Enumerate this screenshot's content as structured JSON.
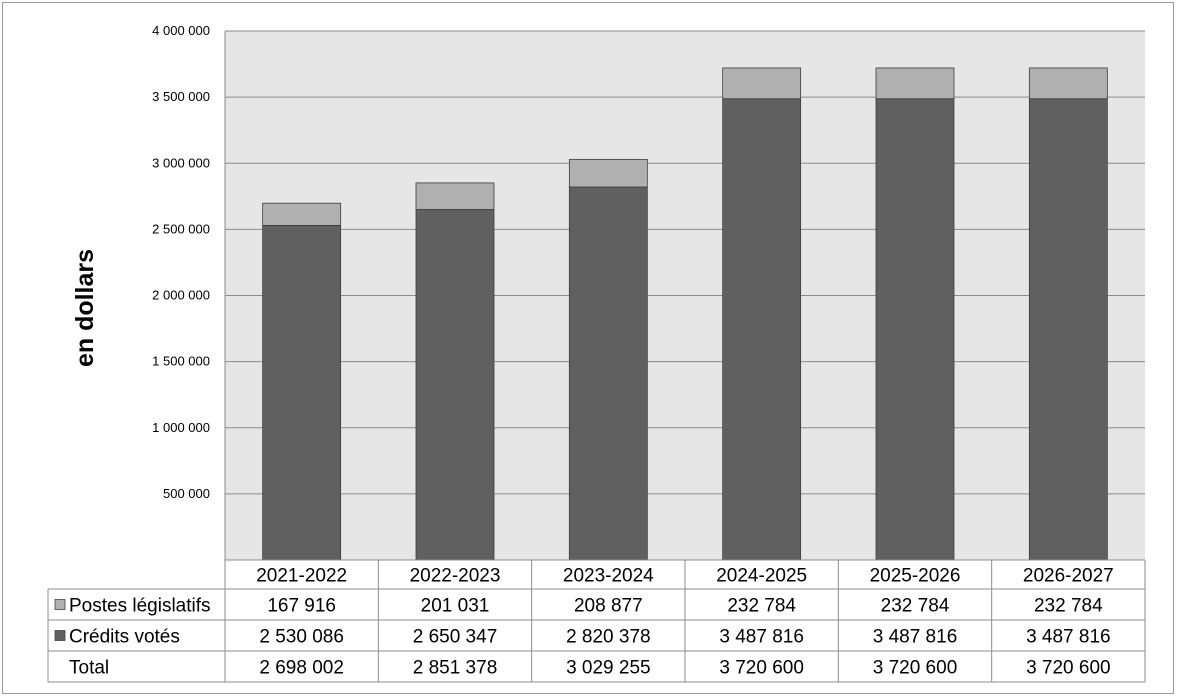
{
  "chart_data": {
    "type": "bar",
    "stacked": true,
    "categories": [
      "2021-2022",
      "2022-2023",
      "2023-2024",
      "2024-2025",
      "2025-2026",
      "2026-2027"
    ],
    "series": [
      {
        "name": "Crédits votés",
        "values": [
          2530086,
          2650347,
          2820378,
          3487816,
          3487816,
          3487816
        ],
        "color": "#606060"
      },
      {
        "name": "Postes législatifs",
        "values": [
          167916,
          201031,
          208877,
          232784,
          232784,
          232784
        ],
        "color": "#b0b0b0"
      }
    ],
    "ylabel": "en dollars",
    "ylim": [
      0,
      4000000
    ],
    "yticks": [
      500000,
      1000000,
      1500000,
      2000000,
      2500000,
      3000000,
      3500000,
      4000000
    ],
    "ytick_labels": [
      "500 000",
      "1 000 000",
      "1 500 000",
      "2 000 000",
      "2 500 000",
      "3 000 000",
      "3 500 000",
      "4 000 000"
    ],
    "grid": true,
    "plot_background": "#e6e6e6",
    "table": {
      "rows": [
        {
          "label": "Postes législatifs",
          "legend_color": "#b0b0b0",
          "cells": [
            "167 916",
            "201 031",
            "208 877",
            "232 784",
            "232 784",
            "232 784"
          ]
        },
        {
          "label": "Crédits votés",
          "legend_color": "#606060",
          "cells": [
            "2 530 086",
            "2 650 347",
            "2 820 378",
            "3 487 816",
            "3 487 816",
            "3 487 816"
          ]
        },
        {
          "label": "Total",
          "legend_color": "",
          "cells": [
            "2 698 002",
            "2 851 378",
            "3 029 255",
            "3 720 600",
            "3 720 600",
            "3 720 600"
          ]
        }
      ]
    }
  }
}
